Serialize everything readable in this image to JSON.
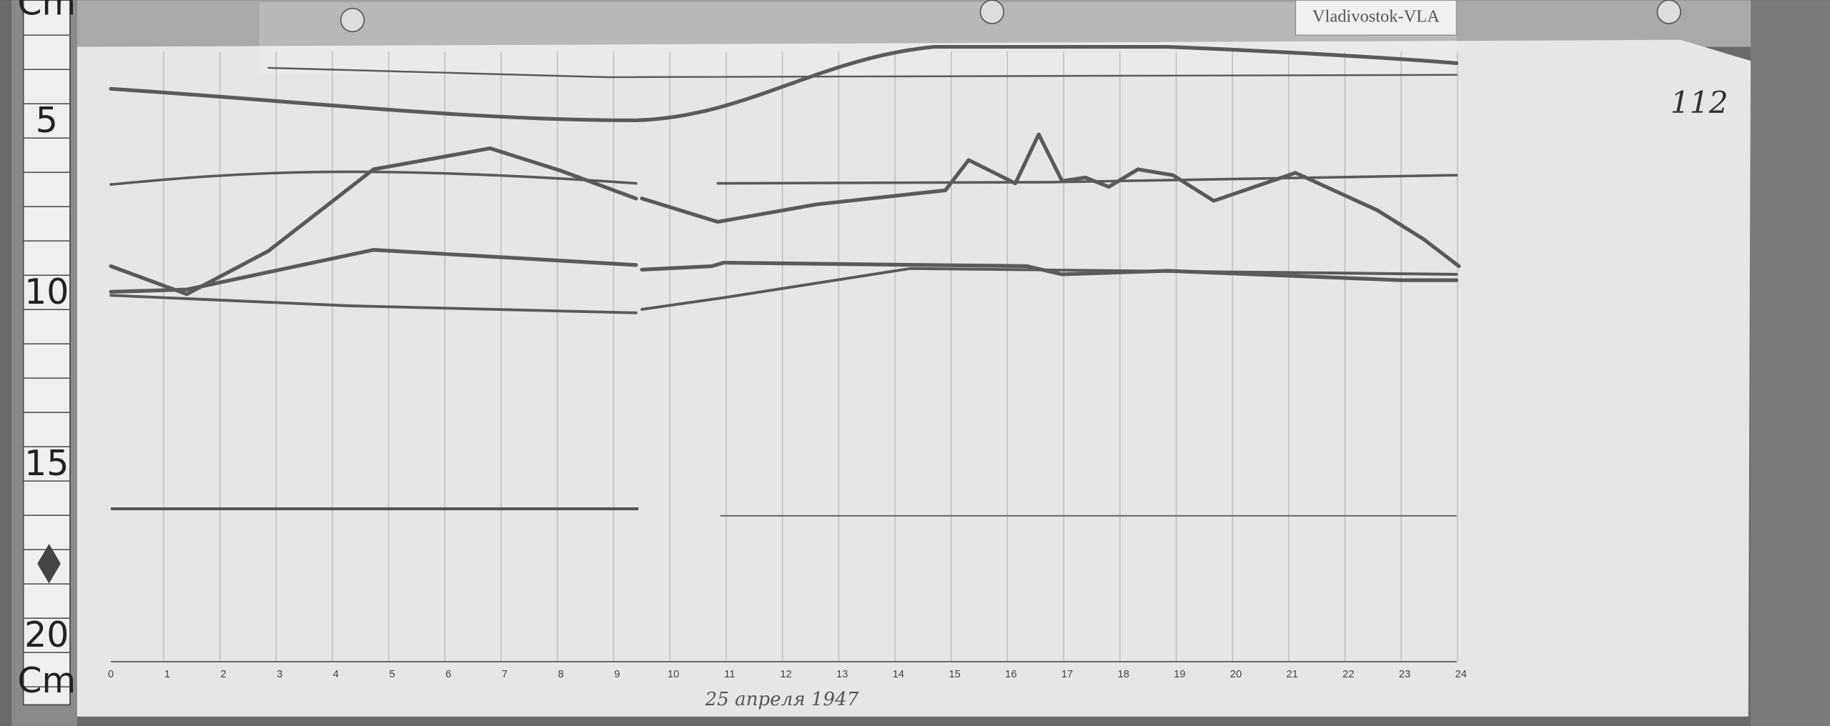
{
  "label": "Vladivostok-VLA",
  "sheet_number": "112",
  "ruler": {
    "unit_top": "Cm",
    "unit_bottom": "Cm",
    "marks": [
      "5",
      "10",
      "15",
      "20"
    ]
  },
  "hours": [
    "0",
    "1",
    "2",
    "3",
    "4",
    "5",
    "6",
    "7",
    "8",
    "9",
    "10",
    "11",
    "12",
    "13",
    "14",
    "15",
    "16",
    "17",
    "18",
    "19",
    "20",
    "21",
    "22",
    "23",
    "24"
  ],
  "caption": "25 апреля 1947"
}
